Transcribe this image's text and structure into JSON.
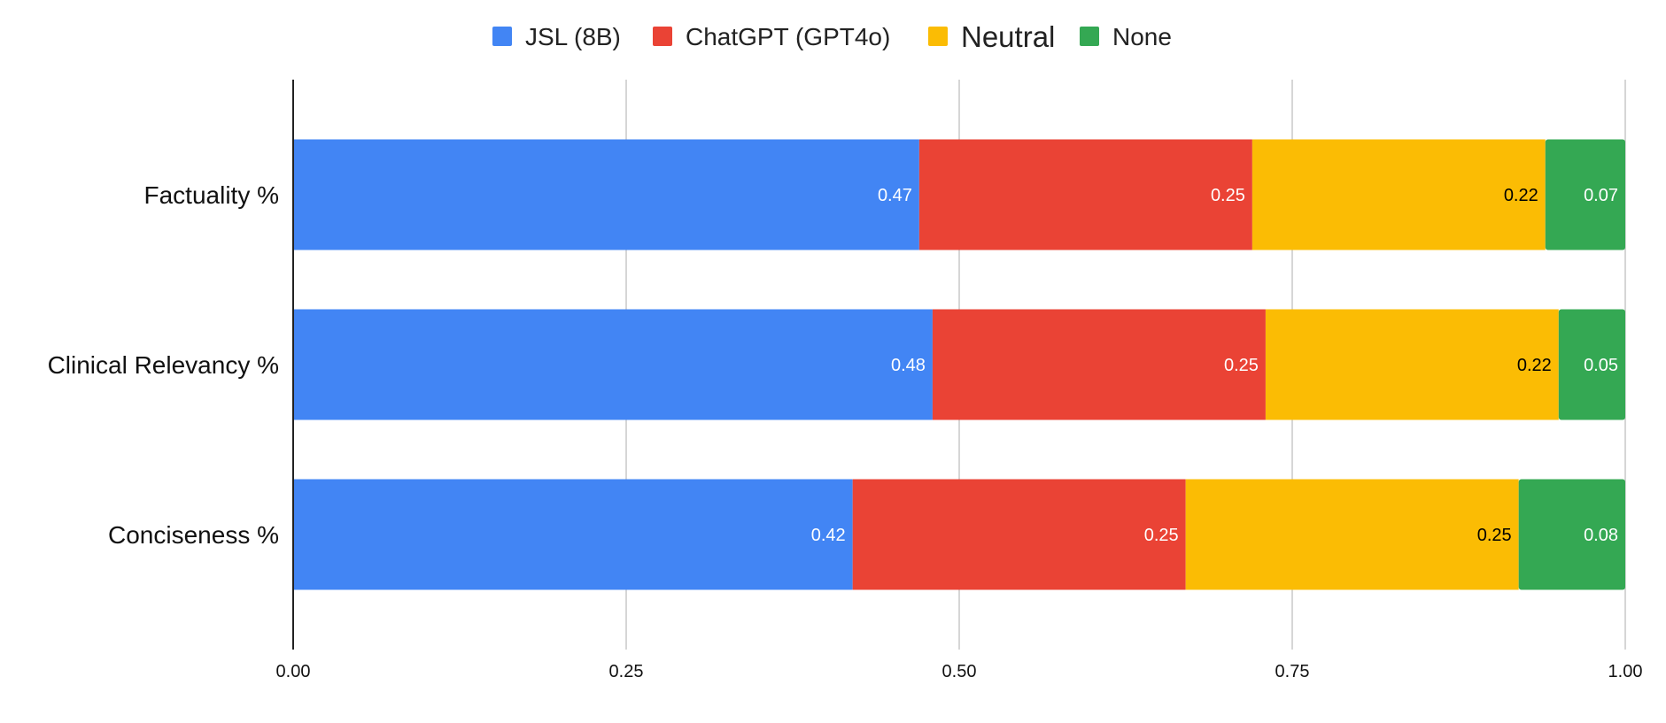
{
  "chart_data": {
    "type": "bar",
    "orientation": "horizontal",
    "stacked": true,
    "categories": [
      "Factuality %",
      "Clinical Relevancy %",
      "Conciseness %"
    ],
    "series": [
      {
        "name": "JSL (8B)",
        "color": "#4285F4",
        "label_color": "#FFFFFF",
        "values": [
          0.47,
          0.48,
          0.42
        ],
        "labels": [
          "0.47",
          "0.48",
          "0.42"
        ]
      },
      {
        "name": "ChatGPT (GPT4o)",
        "color": "#EA4335",
        "label_color": "#FFFFFF",
        "values": [
          0.25,
          0.25,
          0.25
        ],
        "labels": [
          "0.25",
          "0.25",
          "0.25"
        ]
      },
      {
        "name": "Neutral",
        "color": "#FBBC04",
        "label_color": "#000000",
        "values": [
          0.22,
          0.22,
          0.25
        ],
        "labels": [
          "0.22",
          "0.22",
          "0.25"
        ]
      },
      {
        "name": "None",
        "color": "#34A853",
        "label_color": "#FFFFFF",
        "values": [
          0.07,
          0.05,
          0.08
        ],
        "labels": [
          "0.07",
          "0.05",
          "0.08"
        ]
      }
    ],
    "xlim": [
      0,
      1
    ],
    "xticks": [
      0,
      0.25,
      0.5,
      0.75,
      1
    ],
    "xtick_labels": [
      "0.00",
      "0.25",
      "0.50",
      "0.75",
      "1.00"
    ],
    "grid": true,
    "legend_position": "top-center",
    "title": "",
    "xlabel": "",
    "ylabel": ""
  }
}
